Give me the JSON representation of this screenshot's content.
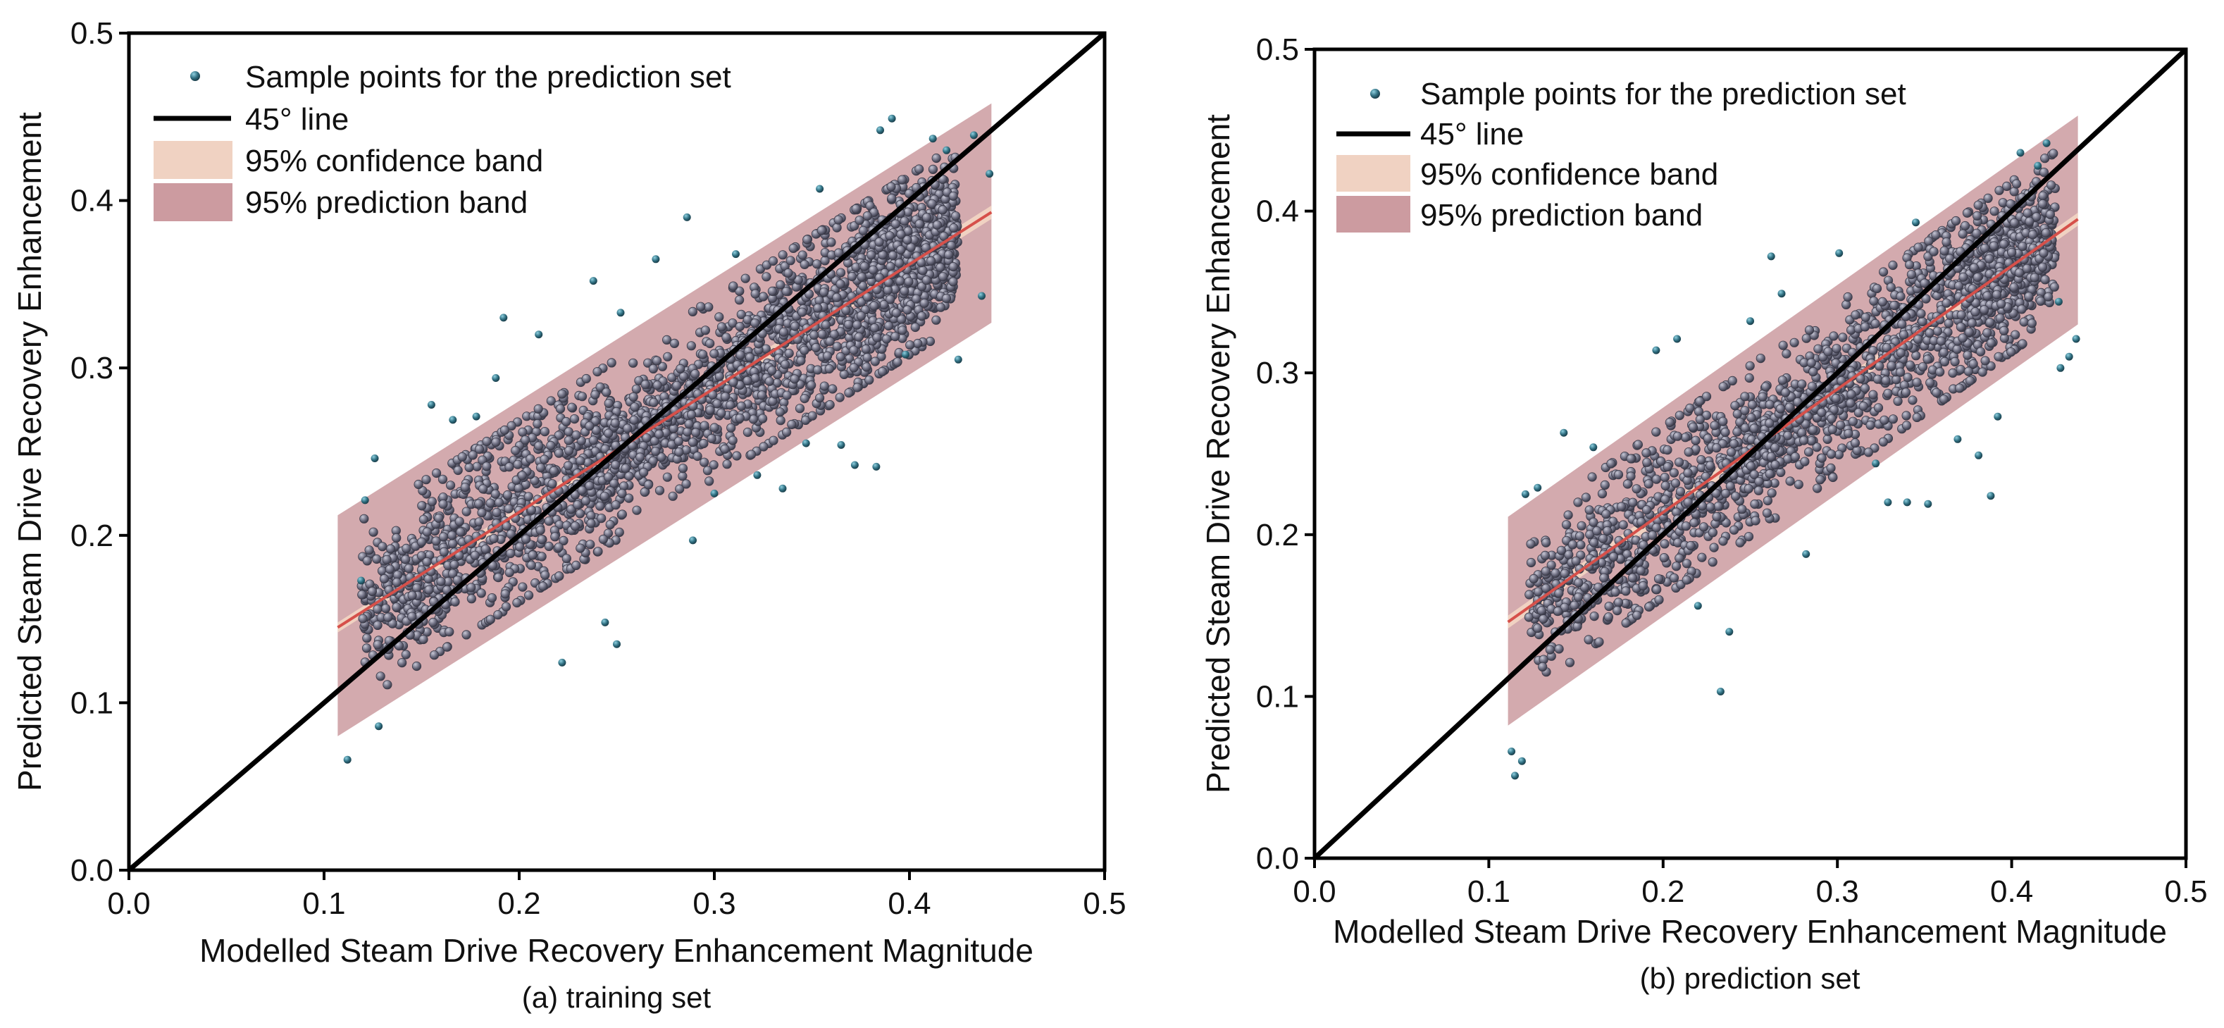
{
  "colors": {
    "points_fill": "#7a7a8e",
    "points_outlier": "#2f6e80",
    "prediction_band": "#c48d93",
    "confidence_band": "#f0d2c2",
    "fit_line": "#d6504a",
    "line_45": "#000000"
  },
  "chart_data": [
    {
      "type": "scatter",
      "panel": "a",
      "caption": "(a) training set",
      "xlabel": "Modelled Steam Drive Recovery Enhancement Magnitude",
      "ylabel": "Predicted Steam Drive Recovery Enhancement",
      "xlim": [
        0.0,
        0.5
      ],
      "ylim": [
        0.0,
        0.5
      ],
      "xticks": [
        "0.0",
        "0.1",
        "0.2",
        "0.3",
        "0.4",
        "0.5"
      ],
      "yticks": [
        "0.0",
        "0.1",
        "0.2",
        "0.3",
        "0.4",
        "0.5"
      ],
      "legend": {
        "position": "top-left",
        "entries": [
          "Sample points for the prediction set",
          "45° line",
          "95% confidence band",
          "95% prediction band"
        ]
      },
      "fit_line": {
        "x": [
          0.107,
          0.442
        ],
        "y": [
          0.145,
          0.393
        ]
      },
      "prediction_band": {
        "x": [
          0.107,
          0.442
        ],
        "lower": [
          0.08,
          0.327
        ],
        "upper": [
          0.212,
          0.458
        ]
      },
      "confidence_band": {
        "x": [
          0.107,
          0.442
        ],
        "lower": [
          0.142,
          0.389
        ],
        "upper": [
          0.148,
          0.397
        ]
      },
      "point_count": 2600,
      "outliers": [
        [
          0.112,
          0.066
        ],
        [
          0.119,
          0.173
        ],
        [
          0.121,
          0.221
        ],
        [
          0.126,
          0.246
        ],
        [
          0.128,
          0.086
        ],
        [
          0.155,
          0.278
        ],
        [
          0.166,
          0.269
        ],
        [
          0.178,
          0.271
        ],
        [
          0.188,
          0.294
        ],
        [
          0.192,
          0.33
        ],
        [
          0.21,
          0.32
        ],
        [
          0.222,
          0.124
        ],
        [
          0.238,
          0.352
        ],
        [
          0.244,
          0.148
        ],
        [
          0.25,
          0.135
        ],
        [
          0.252,
          0.333
        ],
        [
          0.27,
          0.365
        ],
        [
          0.286,
          0.39
        ],
        [
          0.289,
          0.197
        ],
        [
          0.3,
          0.225
        ],
        [
          0.311,
          0.368
        ],
        [
          0.322,
          0.236
        ],
        [
          0.335,
          0.228
        ],
        [
          0.347,
          0.255
        ],
        [
          0.354,
          0.407
        ],
        [
          0.365,
          0.254
        ],
        [
          0.372,
          0.242
        ],
        [
          0.385,
          0.442
        ],
        [
          0.391,
          0.449
        ],
        [
          0.383,
          0.241
        ],
        [
          0.398,
          0.308
        ],
        [
          0.412,
          0.437
        ],
        [
          0.419,
          0.43
        ],
        [
          0.425,
          0.305
        ],
        [
          0.433,
          0.439
        ],
        [
          0.441,
          0.416
        ],
        [
          0.437,
          0.343
        ]
      ]
    },
    {
      "type": "scatter",
      "panel": "b",
      "caption": "(b) prediction set",
      "xlabel": "Modelled Steam Drive Recovery Enhancement Magnitude",
      "ylabel": "Predicted Steam Drive Recovery Enhancement",
      "xlim": [
        0.0,
        0.5
      ],
      "ylim": [
        0.0,
        0.5
      ],
      "xticks": [
        "0.0",
        "0.1",
        "0.2",
        "0.3",
        "0.4",
        "0.5"
      ],
      "yticks": [
        "0.0",
        "0.1",
        "0.2",
        "0.3",
        "0.4",
        "0.5"
      ],
      "legend": {
        "position": "top-left",
        "entries": [
          "Sample points for the prediction set",
          "45° line",
          "95% confidence band",
          "95% prediction band"
        ]
      },
      "fit_line": {
        "x": [
          0.111,
          0.438
        ],
        "y": [
          0.146,
          0.395
        ]
      },
      "prediction_band": {
        "x": [
          0.111,
          0.438
        ],
        "lower": [
          0.082,
          0.33
        ],
        "upper": [
          0.211,
          0.459
        ]
      },
      "confidence_band": {
        "x": [
          0.111,
          0.438
        ],
        "lower": [
          0.142,
          0.391
        ],
        "upper": [
          0.15,
          0.399
        ]
      },
      "point_count": 2000,
      "outliers": [
        [
          0.113,
          0.066
        ],
        [
          0.115,
          0.051
        ],
        [
          0.119,
          0.06
        ],
        [
          0.121,
          0.225
        ],
        [
          0.128,
          0.229
        ],
        [
          0.143,
          0.263
        ],
        [
          0.16,
          0.254
        ],
        [
          0.196,
          0.314
        ],
        [
          0.208,
          0.321
        ],
        [
          0.22,
          0.156
        ],
        [
          0.233,
          0.103
        ],
        [
          0.238,
          0.14
        ],
        [
          0.25,
          0.332
        ],
        [
          0.262,
          0.372
        ],
        [
          0.268,
          0.349
        ],
        [
          0.282,
          0.188
        ],
        [
          0.301,
          0.374
        ],
        [
          0.322,
          0.244
        ],
        [
          0.329,
          0.22
        ],
        [
          0.34,
          0.22
        ],
        [
          0.345,
          0.393
        ],
        [
          0.352,
          0.219
        ],
        [
          0.369,
          0.259
        ],
        [
          0.381,
          0.249
        ],
        [
          0.388,
          0.224
        ],
        [
          0.392,
          0.273
        ],
        [
          0.405,
          0.436
        ],
        [
          0.415,
          0.428
        ],
        [
          0.42,
          0.442
        ],
        [
          0.428,
          0.303
        ],
        [
          0.433,
          0.31
        ],
        [
          0.437,
          0.321
        ],
        [
          0.427,
          0.344
        ]
      ]
    }
  ]
}
